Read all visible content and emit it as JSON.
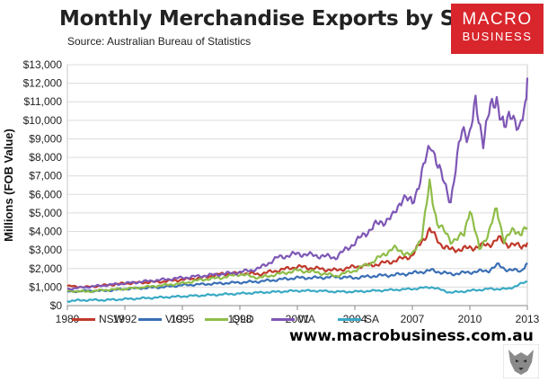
{
  "header": {
    "title": "Monthly Merchandise Exports by State",
    "subtitle": "Source:  Australian Bureau of Statistics"
  },
  "logo": {
    "line1": "MACRO",
    "line2": "BUSINESS",
    "color": "#d8262c"
  },
  "footer": {
    "website": "www.macrobusiness.com.au"
  },
  "chart_data": {
    "type": "line",
    "title": "Monthly Merchandise Exports by State",
    "subtitle": "Source:  Australian Bureau of Statistics",
    "xlabel": "",
    "ylabel": "Millions (FOB Value)",
    "xlim": [
      1989,
      2013
    ],
    "ylim": [
      0,
      13000
    ],
    "x_ticks": [
      "1989",
      "1992",
      "1995",
      "1998",
      "2001",
      "2004",
      "2007",
      "2010",
      "2013"
    ],
    "y_ticks": [
      "$0",
      "$1,000",
      "$2,000",
      "$3,000",
      "$4,000",
      "$5,000",
      "$6,000",
      "$7,000",
      "$8,000",
      "$9,000",
      "$10,000",
      "$11,000",
      "$12,000",
      "$13,000"
    ],
    "grid": true,
    "legend_position": "bottom",
    "series": [
      {
        "name": "NSW",
        "color": "#c0392b",
        "points": [
          [
            1989,
            1050
          ],
          [
            1990,
            1000
          ],
          [
            1991,
            1100
          ],
          [
            1992,
            1200
          ],
          [
            1993,
            1250
          ],
          [
            1994,
            1300
          ],
          [
            1995,
            1400
          ],
          [
            1996,
            1500
          ],
          [
            1997,
            1700
          ],
          [
            1998,
            1750
          ],
          [
            1999,
            1700
          ],
          [
            2000,
            1900
          ],
          [
            2001,
            2100
          ],
          [
            2002,
            2000
          ],
          [
            2003,
            1900
          ],
          [
            2004,
            2100
          ],
          [
            2005,
            2200
          ],
          [
            2006,
            2400
          ],
          [
            2007,
            2700
          ],
          [
            2007.9,
            4100
          ],
          [
            2008.5,
            3300
          ],
          [
            2009,
            3000
          ],
          [
            2010,
            3100
          ],
          [
            2011,
            3300
          ],
          [
            2011.5,
            3600
          ],
          [
            2012,
            3300
          ],
          [
            2012.7,
            3200
          ],
          [
            2013,
            3400
          ]
        ]
      },
      {
        "name": "VIC",
        "color": "#3a6fb5",
        "points": [
          [
            1989,
            750
          ],
          [
            1990,
            800
          ],
          [
            1991,
            800
          ],
          [
            1992,
            900
          ],
          [
            1993,
            950
          ],
          [
            1994,
            1000
          ],
          [
            1995,
            1100
          ],
          [
            1996,
            1150
          ],
          [
            1997,
            1200
          ],
          [
            1998,
            1250
          ],
          [
            1999,
            1300
          ],
          [
            2000,
            1400
          ],
          [
            2001,
            1500
          ],
          [
            2002,
            1500
          ],
          [
            2003,
            1550
          ],
          [
            2004,
            1500
          ],
          [
            2005,
            1600
          ],
          [
            2006,
            1650
          ],
          [
            2007,
            1750
          ],
          [
            2008,
            1900
          ],
          [
            2009,
            1700
          ],
          [
            2010,
            1800
          ],
          [
            2011,
            1900
          ],
          [
            2011.5,
            2200
          ],
          [
            2012,
            1900
          ],
          [
            2012.7,
            1900
          ],
          [
            2013,
            2300
          ]
        ]
      },
      {
        "name": "QLD",
        "color": "#8fbd48",
        "points": [
          [
            1989,
            800
          ],
          [
            1990,
            750
          ],
          [
            1991,
            850
          ],
          [
            1992,
            900
          ],
          [
            1993,
            1000
          ],
          [
            1994,
            1100
          ],
          [
            1995,
            1200
          ],
          [
            1996,
            1400
          ],
          [
            1997,
            1500
          ],
          [
            1998,
            1700
          ],
          [
            1999,
            1500
          ],
          [
            2000,
            1700
          ],
          [
            2001,
            1900
          ],
          [
            2002,
            1800
          ],
          [
            2003,
            1600
          ],
          [
            2004,
            1900
          ],
          [
            2005,
            2400
          ],
          [
            2006,
            3100
          ],
          [
            2007,
            2700
          ],
          [
            2007.5,
            3800
          ],
          [
            2007.9,
            6500
          ],
          [
            2008.3,
            4500
          ],
          [
            2009,
            3500
          ],
          [
            2009.7,
            3800
          ],
          [
            2010,
            5300
          ],
          [
            2010.5,
            3000
          ],
          [
            2011,
            4000
          ],
          [
            2011.4,
            5200
          ],
          [
            2011.8,
            3500
          ],
          [
            2012.3,
            4100
          ],
          [
            2012.7,
            3900
          ],
          [
            2013,
            4200
          ]
        ]
      },
      {
        "name": "WA",
        "color": "#7e57b5",
        "points": [
          [
            1989,
            900
          ],
          [
            1990,
            1000
          ],
          [
            1991,
            1100
          ],
          [
            1992,
            1200
          ],
          [
            1993,
            1300
          ],
          [
            1994,
            1400
          ],
          [
            1995,
            1500
          ],
          [
            1996,
            1600
          ],
          [
            1997,
            1700
          ],
          [
            1998,
            1800
          ],
          [
            1999,
            2000
          ],
          [
            2000,
            2600
          ],
          [
            2001,
            2800
          ],
          [
            2002,
            2700
          ],
          [
            2003,
            2600
          ],
          [
            2004,
            3400
          ],
          [
            2005,
            4300
          ],
          [
            2006,
            4800
          ],
          [
            2006.5,
            5900
          ],
          [
            2007,
            5500
          ],
          [
            2008,
            8800
          ],
          [
            2008.5,
            7000
          ],
          [
            2009,
            5700
          ],
          [
            2009.6,
            9500
          ],
          [
            2010,
            9300
          ],
          [
            2010.3,
            10800
          ],
          [
            2010.7,
            9000
          ],
          [
            2011,
            10300
          ],
          [
            2011.4,
            11300
          ],
          [
            2011.8,
            9400
          ],
          [
            2012.2,
            10600
          ],
          [
            2012.6,
            9300
          ],
          [
            2012.9,
            10800
          ],
          [
            2013,
            12300
          ]
        ]
      },
      {
        "name": "SA",
        "color": "#39a9c4",
        "points": [
          [
            1989,
            250
          ],
          [
            1990,
            300
          ],
          [
            1991,
            300
          ],
          [
            1992,
            350
          ],
          [
            1993,
            400
          ],
          [
            1994,
            450
          ],
          [
            1995,
            500
          ],
          [
            1996,
            550
          ],
          [
            1997,
            600
          ],
          [
            1998,
            650
          ],
          [
            1999,
            700
          ],
          [
            2000,
            750
          ],
          [
            2001,
            800
          ],
          [
            2002,
            800
          ],
          [
            2003,
            750
          ],
          [
            2004,
            750
          ],
          [
            2005,
            800
          ],
          [
            2006,
            850
          ],
          [
            2007,
            900
          ],
          [
            2008,
            1000
          ],
          [
            2009,
            700
          ],
          [
            2010,
            800
          ],
          [
            2011,
            900
          ],
          [
            2012,
            900
          ],
          [
            2013,
            1300
          ]
        ]
      }
    ]
  }
}
